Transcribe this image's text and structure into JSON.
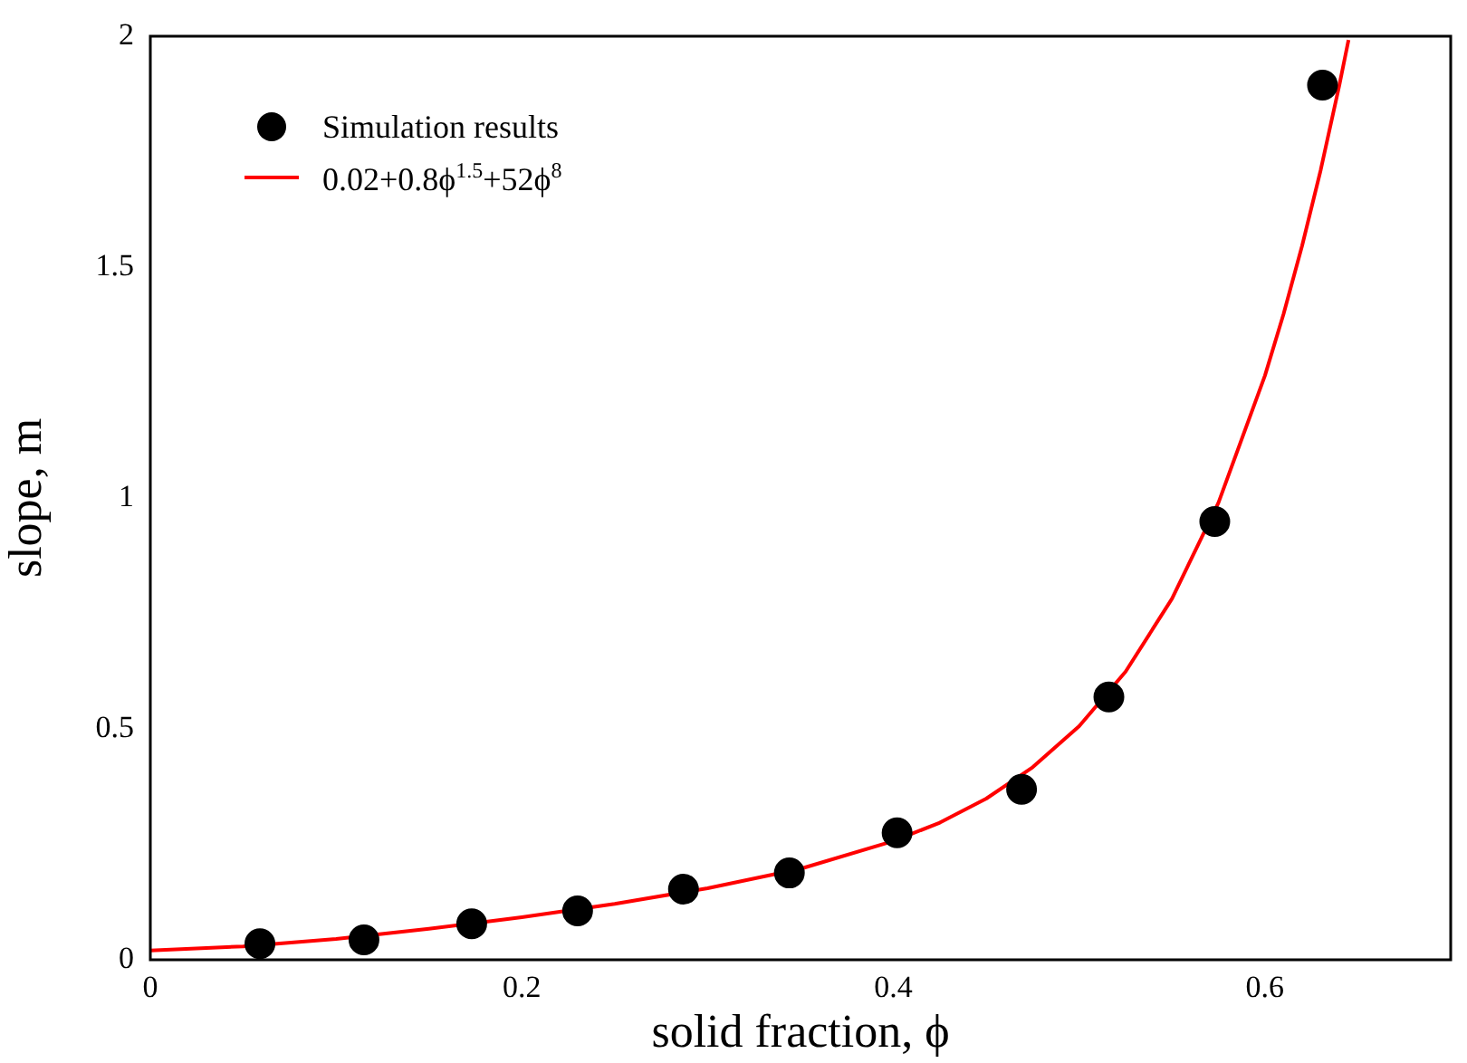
{
  "chart_data": {
    "type": "scatter",
    "xlabel": "solid fraction, ϕ",
    "ylabel": "slope, m",
    "xlim": [
      0,
      0.7
    ],
    "xticks": [
      0,
      0.2,
      0.4,
      0.6
    ],
    "ylim": [
      0,
      2
    ],
    "yticks": [
      0,
      0.5,
      1,
      1.5,
      2
    ],
    "grid": false,
    "legend": "top left",
    "series": [
      {
        "name": "Simulation results",
        "marker": "circle",
        "color": "#000000",
        "x": [
          0.059,
          0.115,
          0.173,
          0.23,
          0.287,
          0.344,
          0.402,
          0.469,
          0.516,
          0.573,
          0.631
        ],
        "values": [
          0.035,
          0.043,
          0.078,
          0.106,
          0.153,
          0.188,
          0.275,
          0.369,
          0.569,
          0.949,
          1.894
        ]
      },
      {
        "name": "0.02+0.8ϕ$^{1.5}$+52ϕ$^{8}$",
        "type": "line",
        "marker": "none",
        "color": "#ff0000",
        "x": [
          0,
          0.05,
          0.1,
          0.15,
          0.2,
          0.25,
          0.3,
          0.35,
          0.4,
          0.425,
          0.45,
          0.475,
          0.5,
          0.525,
          0.55,
          0.575,
          0.6,
          0.61,
          0.62,
          0.63,
          0.64,
          0.645
        ],
        "values": [
          0.02,
          0.029,
          0.045,
          0.067,
          0.092,
          0.121,
          0.155,
          0.197,
          0.257,
          0.297,
          0.349,
          0.417,
          0.506,
          0.624,
          0.782,
          0.99,
          1.265,
          1.398,
          1.546,
          1.71,
          1.893,
          1.992
        ]
      }
    ]
  }
}
